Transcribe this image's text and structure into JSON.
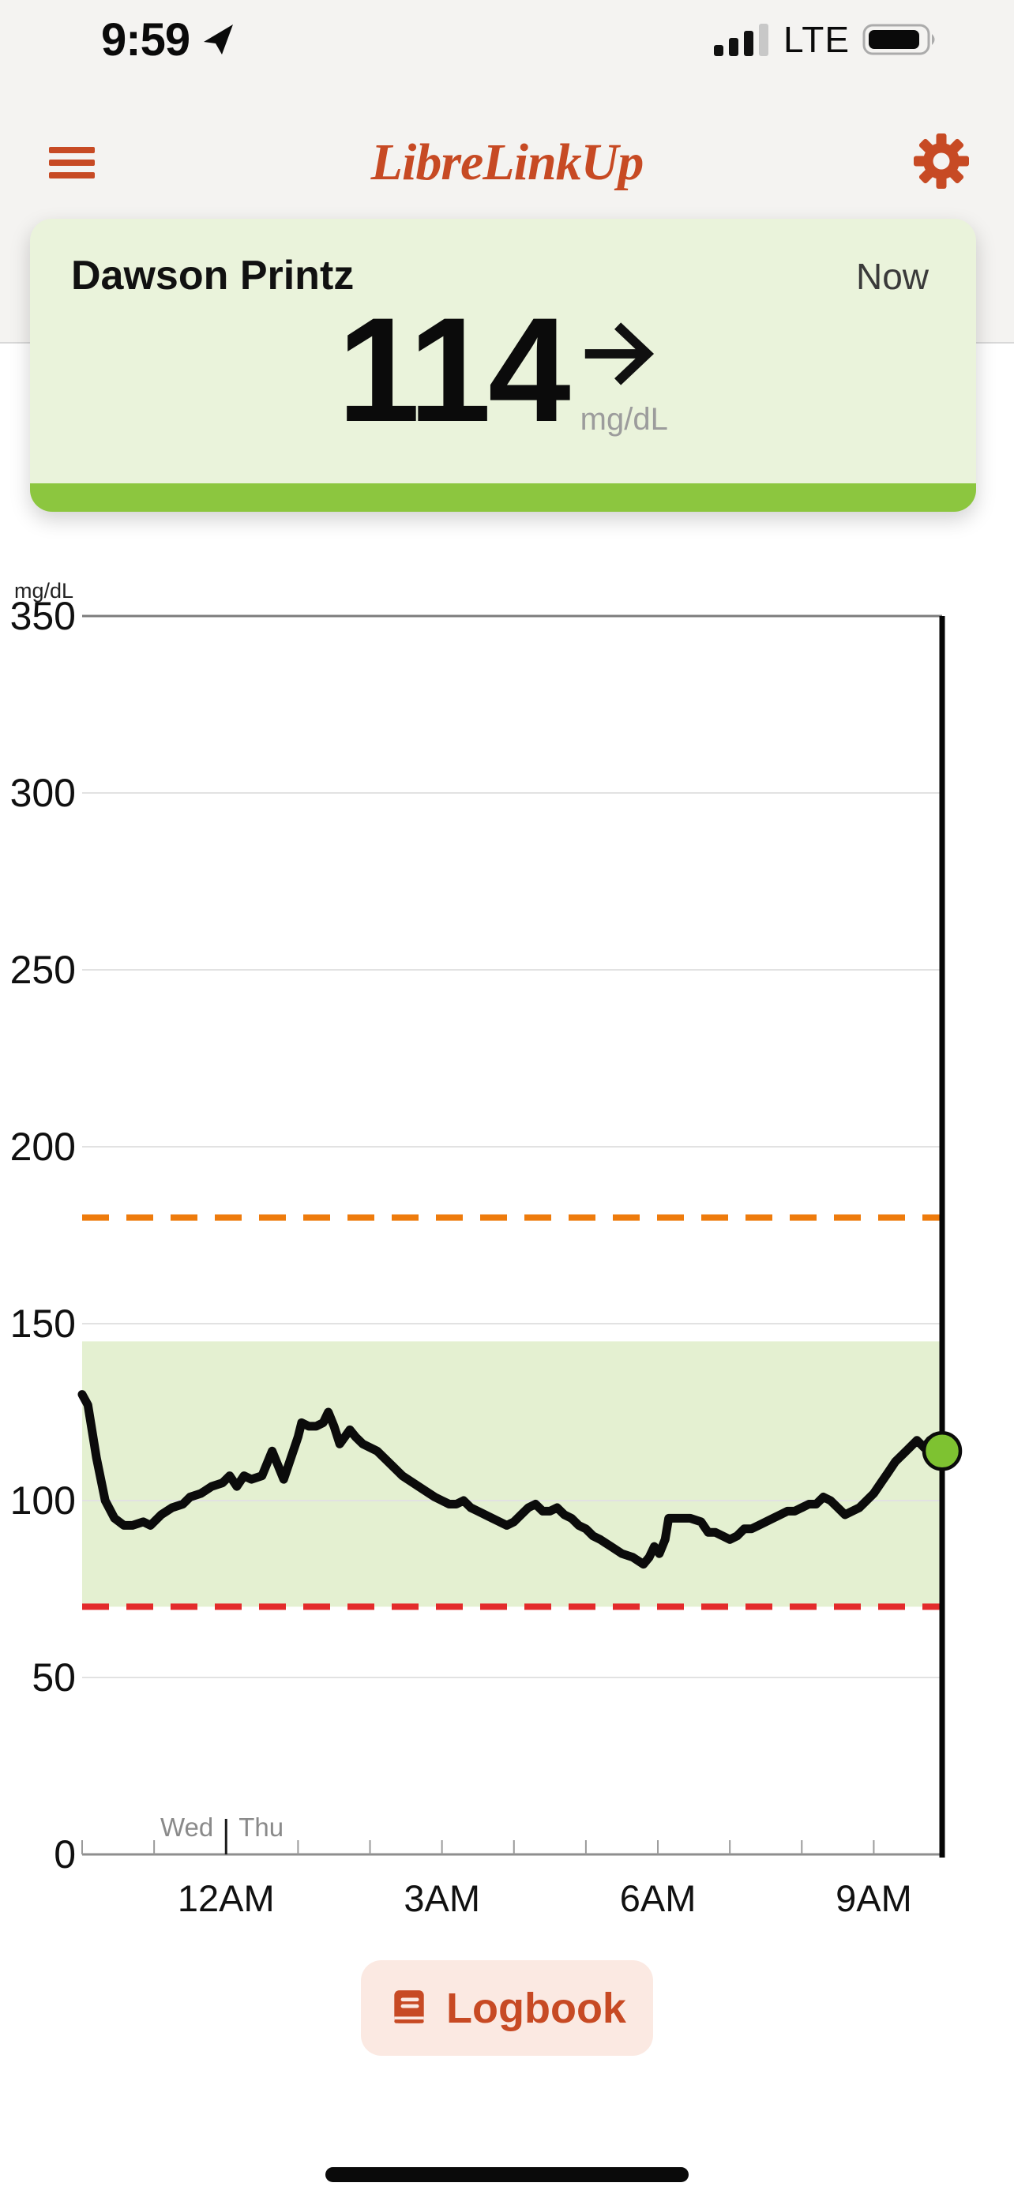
{
  "status_bar": {
    "time": "9:59",
    "network": "LTE"
  },
  "header": {
    "app_title": "LibreLinkUp"
  },
  "patient_card": {
    "name": "Dawson Printz",
    "time_label": "Now",
    "glucose_value": "114",
    "glucose_unit": "mg/dL",
    "trend": "steady"
  },
  "chart_data": {
    "type": "line",
    "ylabel": "mg/dL",
    "ylim": [
      0,
      350
    ],
    "y_ticks": [
      0,
      50,
      100,
      150,
      200,
      250,
      300,
      350
    ],
    "x_hours_range": [
      -2,
      9.95
    ],
    "x_tick_labels": [
      {
        "hour": 0,
        "label": "12AM"
      },
      {
        "hour": 3,
        "label": "3AM"
      },
      {
        "hour": 6,
        "label": "6AM"
      },
      {
        "hour": 9,
        "label": "9AM"
      }
    ],
    "minor_tick_hours": [
      -2,
      -1,
      0,
      1,
      2,
      3,
      4,
      5,
      6,
      7,
      8,
      9
    ],
    "day_boundary": {
      "hour": 0,
      "left_label": "Wed",
      "right_label": "Thu"
    },
    "target_range": {
      "low": 70,
      "high": 145
    },
    "high_alarm": 180,
    "low_alarm": 70,
    "grid": "horizontal",
    "legend": "none",
    "current_reading": {
      "hour": 9.95,
      "value": 114
    },
    "series": [
      {
        "name": "glucose mg/dL",
        "points": [
          [
            -2.0,
            130
          ],
          [
            -1.92,
            127
          ],
          [
            -1.8,
            112
          ],
          [
            -1.68,
            100
          ],
          [
            -1.55,
            95
          ],
          [
            -1.42,
            93
          ],
          [
            -1.3,
            93
          ],
          [
            -1.15,
            94
          ],
          [
            -1.05,
            93
          ],
          [
            -0.9,
            96
          ],
          [
            -0.75,
            98
          ],
          [
            -0.6,
            99
          ],
          [
            -0.5,
            101
          ],
          [
            -0.35,
            102
          ],
          [
            -0.2,
            104
          ],
          [
            -0.05,
            105
          ],
          [
            0.05,
            107
          ],
          [
            0.15,
            104
          ],
          [
            0.25,
            107
          ],
          [
            0.35,
            106
          ],
          [
            0.5,
            107
          ],
          [
            0.64,
            114
          ],
          [
            0.72,
            110
          ],
          [
            0.8,
            106
          ],
          [
            0.9,
            112
          ],
          [
            1.0,
            118
          ],
          [
            1.05,
            122
          ],
          [
            1.15,
            121
          ],
          [
            1.25,
            121
          ],
          [
            1.35,
            122
          ],
          [
            1.42,
            125
          ],
          [
            1.5,
            121
          ],
          [
            1.58,
            116
          ],
          [
            1.65,
            118
          ],
          [
            1.72,
            120
          ],
          [
            1.8,
            118
          ],
          [
            1.9,
            116
          ],
          [
            2.0,
            115
          ],
          [
            2.1,
            114
          ],
          [
            2.2,
            112
          ],
          [
            2.3,
            110
          ],
          [
            2.45,
            107
          ],
          [
            2.6,
            105
          ],
          [
            2.75,
            103
          ],
          [
            2.9,
            101
          ],
          [
            3.0,
            100
          ],
          [
            3.1,
            99
          ],
          [
            3.2,
            99
          ],
          [
            3.3,
            100
          ],
          [
            3.4,
            98
          ],
          [
            3.5,
            97
          ],
          [
            3.6,
            96
          ],
          [
            3.7,
            95
          ],
          [
            3.8,
            94
          ],
          [
            3.9,
            93
          ],
          [
            4.0,
            94
          ],
          [
            4.1,
            96
          ],
          [
            4.2,
            98
          ],
          [
            4.3,
            99
          ],
          [
            4.4,
            97
          ],
          [
            4.5,
            97
          ],
          [
            4.6,
            98
          ],
          [
            4.7,
            96
          ],
          [
            4.8,
            95
          ],
          [
            4.9,
            93
          ],
          [
            5.0,
            92
          ],
          [
            5.1,
            90
          ],
          [
            5.2,
            89
          ],
          [
            5.35,
            87
          ],
          [
            5.5,
            85
          ],
          [
            5.65,
            84
          ],
          [
            5.8,
            82
          ],
          [
            5.88,
            84
          ],
          [
            5.95,
            87
          ],
          [
            6.02,
            85
          ],
          [
            6.1,
            89
          ],
          [
            6.15,
            95
          ],
          [
            6.3,
            95
          ],
          [
            6.45,
            95
          ],
          [
            6.6,
            94
          ],
          [
            6.7,
            91
          ],
          [
            6.8,
            91
          ],
          [
            6.9,
            90
          ],
          [
            7.0,
            89
          ],
          [
            7.1,
            90
          ],
          [
            7.2,
            92
          ],
          [
            7.3,
            92
          ],
          [
            7.4,
            93
          ],
          [
            7.5,
            94
          ],
          [
            7.6,
            95
          ],
          [
            7.7,
            96
          ],
          [
            7.8,
            97
          ],
          [
            7.9,
            97
          ],
          [
            8.0,
            98
          ],
          [
            8.1,
            99
          ],
          [
            8.2,
            99
          ],
          [
            8.3,
            101
          ],
          [
            8.4,
            100
          ],
          [
            8.5,
            98
          ],
          [
            8.6,
            96
          ],
          [
            8.7,
            97
          ],
          [
            8.8,
            98
          ],
          [
            8.9,
            100
          ],
          [
            9.0,
            102
          ],
          [
            9.1,
            105
          ],
          [
            9.2,
            108
          ],
          [
            9.3,
            111
          ],
          [
            9.4,
            113
          ],
          [
            9.5,
            115
          ],
          [
            9.6,
            117
          ],
          [
            9.65,
            116
          ],
          [
            9.7,
            115
          ],
          [
            9.78,
            117
          ],
          [
            9.85,
            118
          ],
          [
            9.95,
            114
          ]
        ]
      }
    ]
  },
  "logbook": {
    "label": "Logbook"
  },
  "colors": {
    "brand_orange": "#C74A24",
    "top_bg": "#F4F3F1",
    "card_bg": "#EAF3DB",
    "green_accent": "#8CC63F",
    "range_band": "#E4F0D1",
    "dot_fill": "#7EC231",
    "high_alarm_line": "#EE7B0C",
    "low_alarm_line": "#E32B2B",
    "logbook_bg": "#FBE9E2"
  }
}
